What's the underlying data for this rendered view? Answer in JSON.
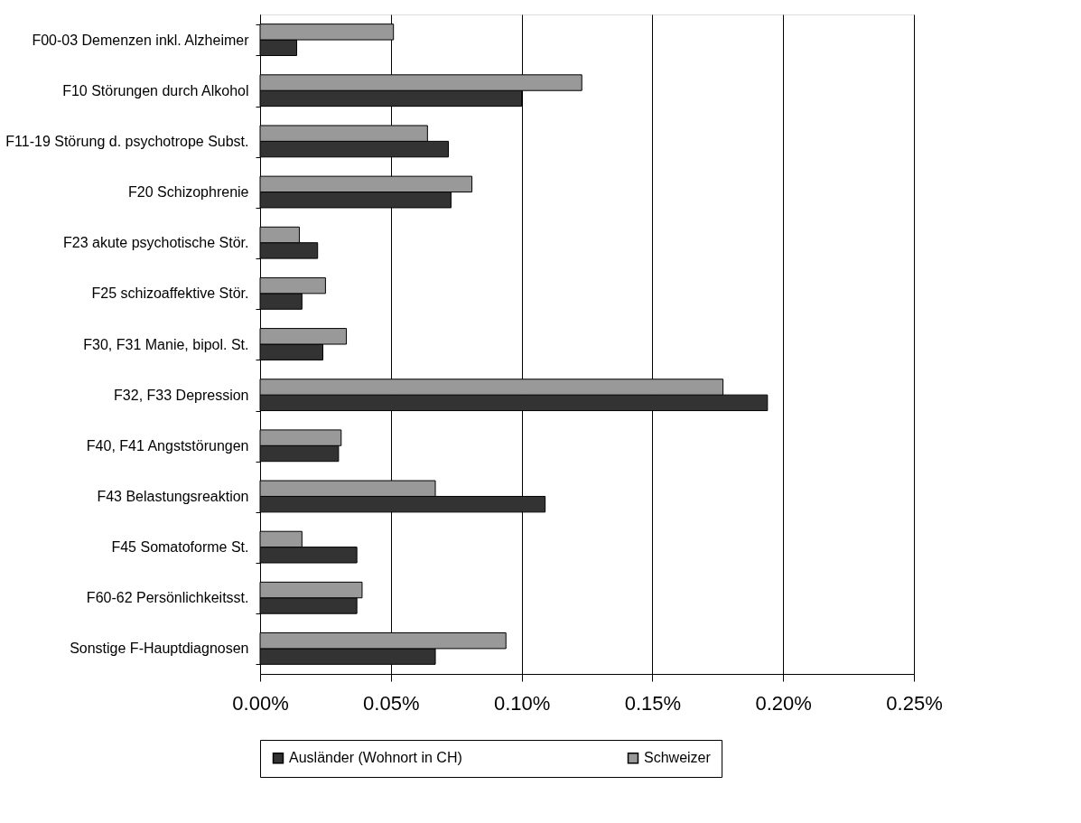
{
  "chart_data": {
    "type": "bar",
    "orientation": "horizontal",
    "categories": [
      "F00-03 Demenzen inkl. Alzheimer",
      "F10 Störungen durch Alkohol",
      "F11-19 Störung d. psychotrope Subst.",
      "F20 Schizophrenie",
      "F23 akute psychotische Stör.",
      "F25 schizoaffektive Stör.",
      "F30, F31 Manie, bipol. St.",
      "F32, F33 Depression",
      "F40, F41 Angststörungen",
      "F43 Belastungsreaktion",
      "F45 Somatoforme St.",
      "F60-62 Persönlichkeitsst.",
      "Sonstige F-Hauptdiagnosen"
    ],
    "series": [
      {
        "name": "Ausländer (Wohnort in CH)",
        "color": "#333333",
        "values": [
          0.014,
          0.1,
          0.072,
          0.073,
          0.022,
          0.016,
          0.024,
          0.194,
          0.03,
          0.109,
          0.037,
          0.037,
          0.067
        ]
      },
      {
        "name": "Schweizer",
        "color": "#999999",
        "values": [
          0.051,
          0.123,
          0.064,
          0.081,
          0.015,
          0.025,
          0.033,
          0.177,
          0.031,
          0.067,
          0.016,
          0.039,
          0.094
        ]
      }
    ],
    "xlim": [
      0,
      0.25
    ],
    "xticks": [
      {
        "value": 0,
        "label": "0.00%"
      },
      {
        "value": 0.05,
        "label": "0.05%"
      },
      {
        "value": 0.1,
        "label": "0.10%"
      },
      {
        "value": 0.15,
        "label": "0.15%"
      },
      {
        "value": 0.2,
        "label": "0.20%"
      },
      {
        "value": 0.25,
        "label": "0.25%"
      }
    ],
    "grid": "x",
    "legend": "bottom"
  }
}
